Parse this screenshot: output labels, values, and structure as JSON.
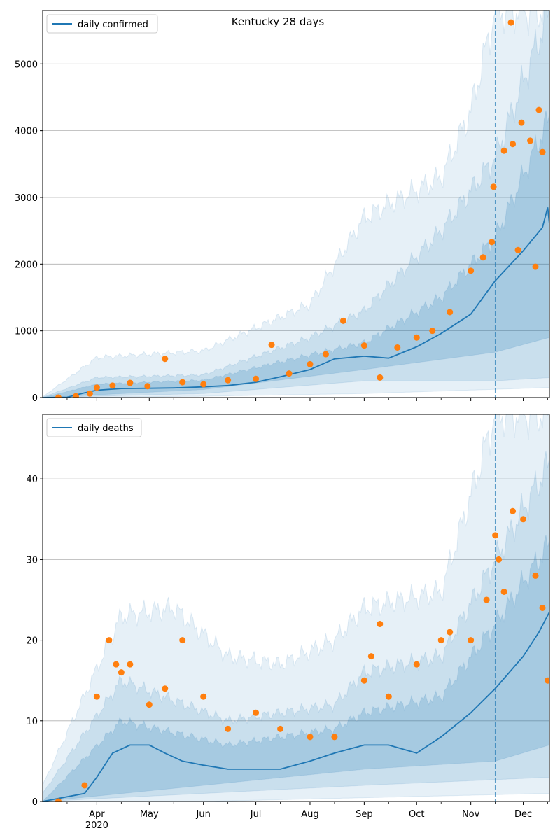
{
  "chart_data": [
    {
      "type": "line",
      "title": "Kentucky 28 days",
      "xlabel": "",
      "ylabel": "",
      "legend": {
        "entries": [
          "daily confirmed"
        ],
        "placement": "top-left"
      },
      "grid": "horizontal",
      "ylim": [
        0,
        5800
      ],
      "yticks": [
        0,
        1000,
        2000,
        3000,
        4000,
        5000
      ],
      "xlim": [
        "2020-03-01",
        "2020-12-16"
      ],
      "forecast_start": "2020-11-15",
      "series": [
        {
          "name": "daily confirmed",
          "kind": "line",
          "color": "#1f77b4",
          "points": [
            [
              "2020-03-01",
              0
            ],
            [
              "2020-03-15",
              5
            ],
            [
              "2020-03-25",
              70
            ],
            [
              "2020-04-01",
              110
            ],
            [
              "2020-04-15",
              135
            ],
            [
              "2020-05-01",
              140
            ],
            [
              "2020-05-15",
              145
            ],
            [
              "2020-06-01",
              160
            ],
            [
              "2020-06-15",
              180
            ],
            [
              "2020-07-01",
              230
            ],
            [
              "2020-07-15",
              310
            ],
            [
              "2020-08-01",
              420
            ],
            [
              "2020-08-15",
              580
            ],
            [
              "2020-09-01",
              620
            ],
            [
              "2020-09-15",
              590
            ],
            [
              "2020-10-01",
              760
            ],
            [
              "2020-10-15",
              960
            ],
            [
              "2020-11-01",
              1250
            ],
            [
              "2020-11-15",
              1750
            ],
            [
              "2020-12-01",
              2200
            ],
            [
              "2020-12-12",
              2550
            ],
            [
              "2020-12-15",
              2850
            ],
            [
              "2020-12-16",
              2600
            ]
          ]
        },
        {
          "name": "observed",
          "kind": "scatter",
          "color": "#ff7f0e",
          "points": [
            [
              "2020-03-10",
              0
            ],
            [
              "2020-03-20",
              20
            ],
            [
              "2020-03-28",
              60
            ],
            [
              "2020-04-01",
              150
            ],
            [
              "2020-04-10",
              180
            ],
            [
              "2020-04-20",
              220
            ],
            [
              "2020-04-30",
              170
            ],
            [
              "2020-05-10",
              580
            ],
            [
              "2020-05-20",
              230
            ],
            [
              "2020-06-01",
              200
            ],
            [
              "2020-06-15",
              260
            ],
            [
              "2020-07-01",
              280
            ],
            [
              "2020-07-10",
              790
            ],
            [
              "2020-07-20",
              360
            ],
            [
              "2020-08-01",
              500
            ],
            [
              "2020-08-10",
              650
            ],
            [
              "2020-08-20",
              1150
            ],
            [
              "2020-09-01",
              780
            ],
            [
              "2020-09-10",
              300
            ],
            [
              "2020-09-20",
              750
            ],
            [
              "2020-10-01",
              900
            ],
            [
              "2020-10-10",
              1000
            ],
            [
              "2020-10-20",
              1280
            ],
            [
              "2020-11-01",
              1900
            ],
            [
              "2020-11-08",
              2100
            ],
            [
              "2020-11-13",
              2330
            ],
            [
              "2020-11-14",
              3160
            ],
            [
              "2020-11-20",
              3700
            ],
            [
              "2020-11-25",
              3800
            ],
            [
              "2020-11-30",
              4120
            ],
            [
              "2020-12-05",
              3850
            ],
            [
              "2020-12-10",
              4310
            ],
            [
              "2020-12-12",
              3680
            ],
            [
              "2020-11-24",
              5620
            ],
            [
              "2020-11-28",
              2210
            ],
            [
              "2020-12-08",
              1960
            ]
          ]
        }
      ],
      "bands": [
        {
          "name": "outer",
          "lower": [
            [
              "2020-03-01",
              0
            ],
            [
              "2020-06-01",
              20
            ],
            [
              "2020-09-01",
              60
            ],
            [
              "2020-12-16",
              150
            ]
          ],
          "upper": [
            [
              "2020-03-01",
              10
            ],
            [
              "2020-04-01",
              600
            ],
            [
              "2020-06-01",
              700
            ],
            [
              "2020-08-01",
              1400
            ],
            [
              "2020-09-01",
              2700
            ],
            [
              "2020-10-15",
              3300
            ],
            [
              "2020-11-01",
              4300
            ],
            [
              "2020-11-15",
              5800
            ],
            [
              "2020-12-16",
              5800
            ]
          ]
        },
        {
          "name": "middle",
          "lower": [
            [
              "2020-03-01",
              0
            ],
            [
              "2020-06-01",
              60
            ],
            [
              "2020-09-01",
              250
            ],
            [
              "2020-11-15",
              250
            ],
            [
              "2020-12-16",
              300
            ]
          ],
          "upper": [
            [
              "2020-03-01",
              5
            ],
            [
              "2020-04-01",
              300
            ],
            [
              "2020-06-01",
              340
            ],
            [
              "2020-08-01",
              900
            ],
            [
              "2020-09-01",
              1300
            ],
            [
              "2020-10-15",
              2500
            ],
            [
              "2020-11-15",
              3600
            ],
            [
              "2020-12-16",
              5800
            ]
          ]
        },
        {
          "name": "inner",
          "lower": [
            [
              "2020-03-01",
              0
            ],
            [
              "2020-06-01",
              120
            ],
            [
              "2020-09-01",
              420
            ],
            [
              "2020-11-15",
              680
            ],
            [
              "2020-12-16",
              900
            ]
          ],
          "upper": [
            [
              "2020-03-01",
              0
            ],
            [
              "2020-04-01",
              200
            ],
            [
              "2020-06-01",
              260
            ],
            [
              "2020-08-01",
              640
            ],
            [
              "2020-09-01",
              820
            ],
            [
              "2020-10-15",
              1500
            ],
            [
              "2020-11-15",
              2400
            ],
            [
              "2020-12-16",
              4200
            ]
          ]
        }
      ]
    },
    {
      "type": "line",
      "title": "",
      "xlabel": "",
      "ylabel": "",
      "legend": {
        "entries": [
          "daily deaths"
        ],
        "placement": "top-left"
      },
      "grid": "horizontal",
      "ylim": [
        0,
        48
      ],
      "yticks": [
        0,
        10,
        20,
        30,
        40
      ],
      "xlim": [
        "2020-03-01",
        "2020-12-16"
      ],
      "xticks": [
        "Apr",
        "May",
        "Jun",
        "Jul",
        "Aug",
        "Sep",
        "Oct",
        "Nov",
        "Dec"
      ],
      "xtick_year": "2020",
      "forecast_start": "2020-11-15",
      "series": [
        {
          "name": "daily deaths",
          "kind": "line",
          "color": "#1f77b4",
          "points": [
            [
              "2020-03-01",
              0
            ],
            [
              "2020-03-25",
              1
            ],
            [
              "2020-04-01",
              3
            ],
            [
              "2020-04-10",
              6
            ],
            [
              "2020-04-20",
              7
            ],
            [
              "2020-05-01",
              7
            ],
            [
              "2020-05-10",
              6
            ],
            [
              "2020-05-20",
              5
            ],
            [
              "2020-06-01",
              4.5
            ],
            [
              "2020-06-15",
              4
            ],
            [
              "2020-07-01",
              4
            ],
            [
              "2020-07-15",
              4
            ],
            [
              "2020-08-01",
              5
            ],
            [
              "2020-08-15",
              6
            ],
            [
              "2020-09-01",
              7
            ],
            [
              "2020-09-15",
              7
            ],
            [
              "2020-10-01",
              6
            ],
            [
              "2020-10-15",
              8
            ],
            [
              "2020-11-01",
              11
            ],
            [
              "2020-11-15",
              14
            ],
            [
              "2020-12-01",
              18
            ],
            [
              "2020-12-10",
              21
            ],
            [
              "2020-12-16",
              23.5
            ]
          ]
        },
        {
          "name": "observed",
          "kind": "scatter",
          "color": "#ff7f0e",
          "points": [
            [
              "2020-03-10",
              0
            ],
            [
              "2020-03-25",
              2
            ],
            [
              "2020-04-01",
              13
            ],
            [
              "2020-04-08",
              20
            ],
            [
              "2020-04-12",
              17
            ],
            [
              "2020-04-15",
              16
            ],
            [
              "2020-04-20",
              17
            ],
            [
              "2020-05-01",
              12
            ],
            [
              "2020-05-10",
              14
            ],
            [
              "2020-05-20",
              20
            ],
            [
              "2020-06-01",
              13
            ],
            [
              "2020-06-15",
              9
            ],
            [
              "2020-07-01",
              11
            ],
            [
              "2020-07-15",
              9
            ],
            [
              "2020-08-01",
              8
            ],
            [
              "2020-08-15",
              8
            ],
            [
              "2020-09-01",
              15
            ],
            [
              "2020-09-05",
              18
            ],
            [
              "2020-09-10",
              22
            ],
            [
              "2020-09-15",
              13
            ],
            [
              "2020-10-01",
              17
            ],
            [
              "2020-10-15",
              20
            ],
            [
              "2020-10-20",
              21
            ],
            [
              "2020-11-01",
              20
            ],
            [
              "2020-11-10",
              25
            ],
            [
              "2020-11-15",
              33
            ],
            [
              "2020-11-17",
              30
            ],
            [
              "2020-11-20",
              26
            ],
            [
              "2020-11-25",
              36
            ],
            [
              "2020-12-01",
              35
            ],
            [
              "2020-12-08",
              28
            ],
            [
              "2020-12-12",
              24
            ],
            [
              "2020-12-15",
              15
            ]
          ]
        }
      ],
      "bands": [
        {
          "name": "outer",
          "lower": [
            [
              "2020-03-01",
              0
            ],
            [
              "2020-06-01",
              0
            ],
            [
              "2020-12-16",
              1
            ]
          ],
          "upper": [
            [
              "2020-03-01",
              2
            ],
            [
              "2020-04-15",
              23
            ],
            [
              "2020-05-15",
              24
            ],
            [
              "2020-06-15",
              18
            ],
            [
              "2020-07-15",
              17
            ],
            [
              "2020-08-15",
              20
            ],
            [
              "2020-09-01",
              24
            ],
            [
              "2020-10-15",
              26
            ],
            [
              "2020-11-01",
              38
            ],
            [
              "2020-11-15",
              48
            ],
            [
              "2020-12-16",
              48
            ]
          ]
        },
        {
          "name": "middle",
          "lower": [
            [
              "2020-03-01",
              0
            ],
            [
              "2020-06-01",
              1
            ],
            [
              "2020-09-01",
              2
            ],
            [
              "2020-12-16",
              3
            ]
          ],
          "upper": [
            [
              "2020-03-01",
              1
            ],
            [
              "2020-04-15",
              15
            ],
            [
              "2020-06-15",
              10
            ],
            [
              "2020-08-15",
              12
            ],
            [
              "2020-09-01",
              16
            ],
            [
              "2020-10-15",
              18
            ],
            [
              "2020-11-15",
              30
            ],
            [
              "2020-12-16",
              42
            ]
          ]
        },
        {
          "name": "inner",
          "lower": [
            [
              "2020-03-01",
              0
            ],
            [
              "2020-06-01",
              2
            ],
            [
              "2020-09-01",
              4
            ],
            [
              "2020-11-15",
              5
            ],
            [
              "2020-12-16",
              7
            ]
          ],
          "upper": [
            [
              "2020-03-01",
              0
            ],
            [
              "2020-04-15",
              10
            ],
            [
              "2020-06-15",
              7
            ],
            [
              "2020-08-15",
              9
            ],
            [
              "2020-09-01",
              11
            ],
            [
              "2020-10-15",
              13
            ],
            [
              "2020-11-15",
              22
            ],
            [
              "2020-12-16",
              32
            ]
          ]
        }
      ]
    }
  ]
}
